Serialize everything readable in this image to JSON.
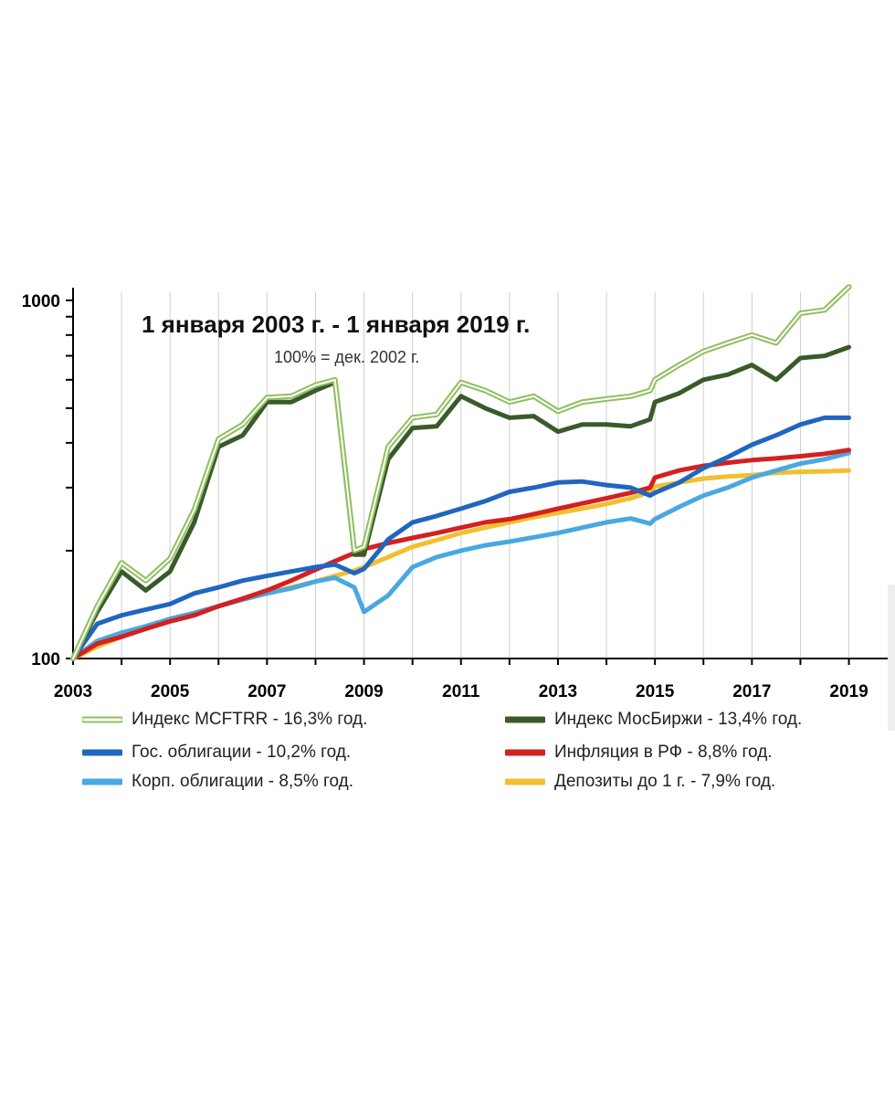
{
  "chart_data": {
    "type": "line",
    "title": "1 января 2003 г. - 1 января 2019 г.",
    "subtitle": "100% = дек. 2002 г.",
    "xlabel": "",
    "ylabel": "",
    "yscale": "log",
    "ylim": [
      100,
      1150
    ],
    "xlim": [
      2003,
      2019.8
    ],
    "x_ticks": [
      "2003",
      "2005",
      "2007",
      "2009",
      "2011",
      "2013",
      "2015",
      "2017",
      "2019"
    ],
    "y_ticks": [
      "100",
      "1000"
    ],
    "x": [
      2003,
      2003.5,
      2004,
      2004.5,
      2005,
      2005.5,
      2006,
      2006.5,
      2007,
      2007.5,
      2008,
      2008.4,
      2008.8,
      2009,
      2009.5,
      2010,
      2010.5,
      2011,
      2011.5,
      2012,
      2012.5,
      2013,
      2013.5,
      2014,
      2014.5,
      2014.9,
      2015,
      2015.5,
      2016,
      2016.5,
      2017,
      2017.5,
      2018,
      2018.5,
      2019
    ],
    "series": [
      {
        "name": "Индекс MCFTRR",
        "legend": "Индекс MCFTRR - 16,3% год.",
        "color": "#8fbf5f",
        "style": "double",
        "values": [
          100,
          140,
          185,
          165,
          190,
          260,
          410,
          450,
          535,
          540,
          580,
          600,
          200,
          205,
          390,
          470,
          480,
          590,
          560,
          520,
          540,
          490,
          520,
          530,
          540,
          560,
          600,
          660,
          720,
          760,
          800,
          760,
          920,
          940,
          1090
        ]
      },
      {
        "name": "Индекс МосБиржи",
        "legend": "Индекс МосБиржи - 13,4% год.",
        "color": "#3a5a2a",
        "style": "solid",
        "values": [
          100,
          135,
          175,
          155,
          175,
          240,
          390,
          420,
          520,
          520,
          560,
          590,
          195,
          195,
          360,
          440,
          445,
          540,
          500,
          470,
          475,
          430,
          450,
          450,
          445,
          465,
          520,
          550,
          600,
          620,
          660,
          600,
          690,
          700,
          740
        ]
      },
      {
        "name": "Гос. облигации",
        "legend": "Гос. облигации - 10,2% год.",
        "color": "#2066c0",
        "style": "solid",
        "values": [
          100,
          125,
          132,
          137,
          142,
          152,
          158,
          165,
          170,
          175,
          180,
          183,
          173,
          178,
          215,
          240,
          250,
          262,
          275,
          292,
          300,
          310,
          312,
          305,
          300,
          285,
          290,
          310,
          340,
          365,
          395,
          420,
          450,
          470,
          470
        ]
      },
      {
        "name": "Инфляция в РФ",
        "legend": "Инфляция в РФ - 8,8% год.",
        "color": "#d42020",
        "style": "solid",
        "values": [
          100,
          110,
          115,
          121,
          127,
          132,
          140,
          147,
          155,
          165,
          177,
          187,
          197,
          202,
          210,
          217,
          224,
          232,
          240,
          245,
          253,
          262,
          271,
          280,
          290,
          300,
          320,
          335,
          345,
          352,
          358,
          362,
          367,
          373,
          382
        ]
      },
      {
        "name": "Корп. облигации",
        "legend": "Корп. облигации - 8,5% год.",
        "color": "#4aa8e0",
        "style": "solid",
        "values": [
          100,
          112,
          118,
          123,
          129,
          134,
          140,
          146,
          152,
          157,
          164,
          168,
          158,
          135,
          150,
          180,
          192,
          200,
          207,
          212,
          218,
          224,
          232,
          240,
          246,
          238,
          245,
          265,
          285,
          300,
          320,
          335,
          350,
          360,
          375
        ]
      },
      {
        "name": "Депозиты до 1 г.",
        "legend": "Депозиты до 1 г. - 7,9% год.",
        "color": "#f0c030",
        "style": "solid",
        "values": [
          100,
          108,
          115,
          122,
          129,
          134,
          140,
          146,
          152,
          158,
          164,
          170,
          176,
          180,
          192,
          205,
          214,
          224,
          232,
          240,
          248,
          255,
          262,
          270,
          280,
          292,
          302,
          310,
          318,
          322,
          325,
          330,
          332,
          333,
          335
        ]
      }
    ],
    "legend_position": "bottom",
    "grid": "vertical"
  }
}
